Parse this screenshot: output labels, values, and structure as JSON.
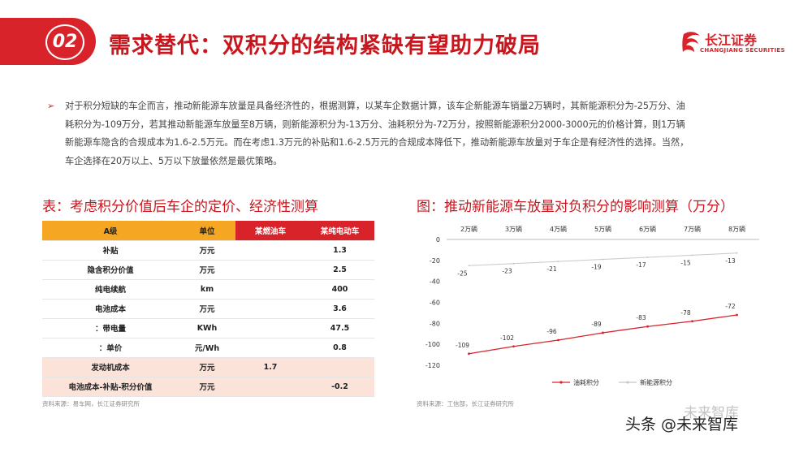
{
  "header": {
    "badge_number": "02",
    "title": "需求替代：双积分的结构紧缺有望助力破局",
    "logo_text": "长江证券",
    "logo_subtext": "CHANGJIANG SECURITIES"
  },
  "body_text": "对于积分短缺的车企而言，推动新能源车放量是具备经济性的，根据测算，以某车企数据计算，该车企新能源车销量2万辆时，其新能源积分为-25万分、油耗积分为-109万分，若其推动新能源车放量至8万辆，则新能源积分为-13万分、油耗积分为-72万分，按照新能源积分2000-3000元的价格计算，则1万辆新能源车隐含的合规成本为1.6-2.5万元。而在考虑1.3万元的补贴和1.6-2.5万元的合规成本降低下，推动新能源车放量对于车企是有经济性的选择。当然，车企选择在20万以上、5万以下放量依然是最优策略。",
  "table_section": {
    "title": "表：考虑积分价值后车企的定价、经济性测算",
    "headers": [
      "A级",
      "单位",
      "某燃油车",
      "某纯电动车"
    ],
    "rows": [
      [
        "补贴",
        "万元",
        "",
        "1.3"
      ],
      [
        "隐含积分价值",
        "万元",
        "",
        "2.5"
      ],
      [
        "纯电续航",
        "km",
        "",
        "400"
      ],
      [
        "电池成本",
        "万元",
        "",
        "3.6"
      ],
      [
        "：带电量",
        "KWh",
        "",
        "47.5"
      ],
      [
        "：单价",
        "元/Wh",
        "",
        "0.8"
      ],
      [
        "发动机成本",
        "万元",
        "1.7",
        ""
      ],
      [
        "电池成本-补贴-积分价值",
        "万元",
        "",
        "-0.2"
      ]
    ],
    "source": "资料来源：易车网，长江证券研究所"
  },
  "chart_section": {
    "title": "图：推动新能源车放量对负积分的影响测算（万分）",
    "source": "资料来源：工信部，长江证券研究所"
  },
  "chart_data": {
    "type": "line",
    "categories": [
      "2万辆",
      "3万辆",
      "4万辆",
      "5万辆",
      "6万辆",
      "7万辆",
      "8万辆"
    ],
    "series": [
      {
        "name": "油耗积分",
        "values": [
          -109,
          -102,
          -96,
          -89,
          -83,
          -78,
          -72
        ],
        "color": "#d9232a"
      },
      {
        "name": "新能源积分",
        "values": [
          -25,
          -23,
          -21,
          -19,
          -17,
          -15,
          -13
        ],
        "color": "#c8c8c8"
      }
    ],
    "yticks": [
      "0",
      "-20",
      "-40",
      "-60",
      "-80",
      "-100",
      "-120"
    ],
    "ylim": [
      -120,
      0
    ],
    "x_axis_position": "top",
    "legend_position": "bottom-left",
    "grid": false
  },
  "watermark": {
    "primary": "头条 @未来智库",
    "secondary": "未来智库"
  }
}
